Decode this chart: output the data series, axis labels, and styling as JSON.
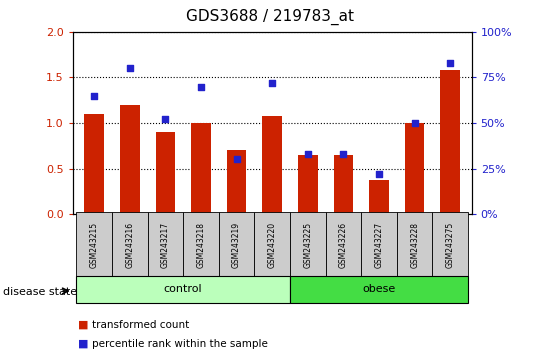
{
  "title": "GDS3688 / 219783_at",
  "samples": [
    "GSM243215",
    "GSM243216",
    "GSM243217",
    "GSM243218",
    "GSM243219",
    "GSM243220",
    "GSM243225",
    "GSM243226",
    "GSM243227",
    "GSM243228",
    "GSM243275"
  ],
  "transformed_count": [
    1.1,
    1.2,
    0.9,
    1.0,
    0.7,
    1.08,
    0.65,
    0.65,
    0.38,
    1.0,
    1.58
  ],
  "percentile_rank": [
    65,
    80,
    52,
    70,
    30,
    72,
    33,
    33,
    22,
    50,
    83
  ],
  "groups": [
    {
      "label": "control",
      "start": 0,
      "end": 6,
      "color": "#bbffbb"
    },
    {
      "label": "obese",
      "start": 6,
      "end": 11,
      "color": "#44dd44"
    }
  ],
  "ylim_left": [
    0,
    2
  ],
  "ylim_right": [
    0,
    100
  ],
  "yticks_left": [
    0,
    0.5,
    1.0,
    1.5,
    2.0
  ],
  "yticks_right": [
    0,
    25,
    50,
    75,
    100
  ],
  "bar_color": "#cc2200",
  "dot_color": "#2222cc",
  "legend_labels": [
    "transformed count",
    "percentile rank within the sample"
  ],
  "disease_state_label": "disease state",
  "tick_label_color_left": "#cc2200",
  "tick_label_color_right": "#2222cc",
  "label_box_color": "#cccccc"
}
